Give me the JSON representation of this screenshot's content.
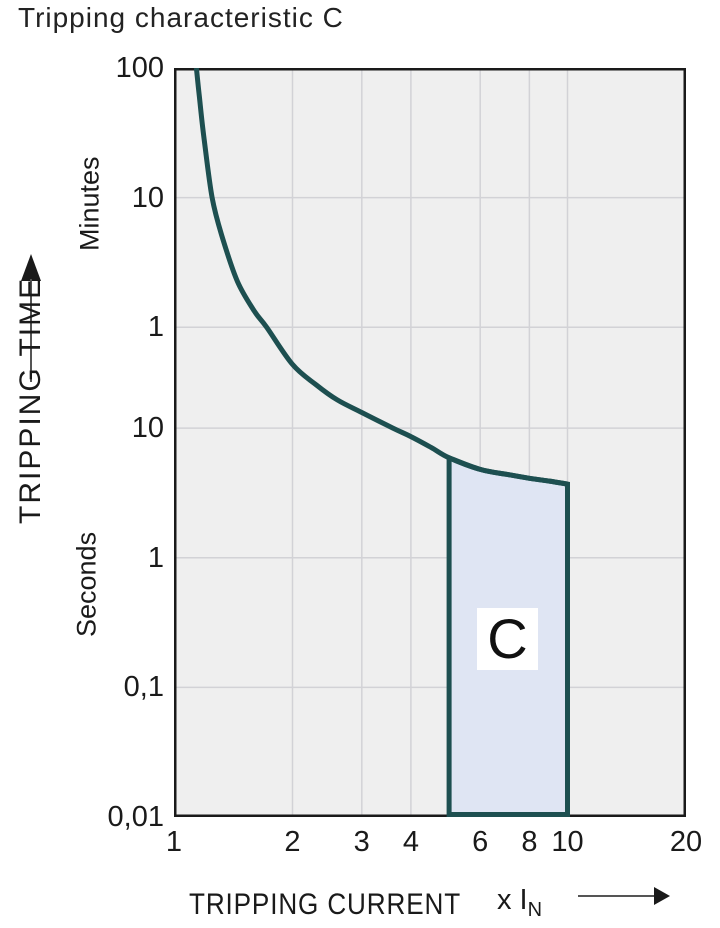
{
  "title": "Tripping characteristic C",
  "colors": {
    "curve": "#1d4f50",
    "region_fill": "#dfe5f3",
    "plot_background": "#efefef",
    "gridline": "#d2d2d6",
    "plot_border": "#1a1a1a",
    "text": "#1a1a1a"
  },
  "y_axis": {
    "title": "TRIPPING TIME",
    "unit_top": "Minutes",
    "unit_bottom": "Seconds"
  },
  "x_axis": {
    "title": "TRIPPING CURRENT",
    "multiplier": {
      "prefix": "x I",
      "sub": "N"
    }
  },
  "chart_data": {
    "type": "line",
    "title": "Tripping characteristic C",
    "x_scale": "log",
    "y_scale": "log",
    "xlabel": "TRIPPING CURRENT (x IN)",
    "ylabel": "TRIPPING TIME",
    "x_range": [
      1,
      20
    ],
    "y_range_seconds": [
      0.01,
      6000
    ],
    "x_ticks": [
      {
        "value": 1,
        "label": "1"
      },
      {
        "value": 2,
        "label": "2"
      },
      {
        "value": 3,
        "label": "3"
      },
      {
        "value": 4,
        "label": "4"
      },
      {
        "value": 6,
        "label": "6"
      },
      {
        "value": 8,
        "label": "8"
      },
      {
        "value": 10,
        "label": "10"
      },
      {
        "value": 20,
        "label": "20"
      }
    ],
    "y_ticks": [
      {
        "seconds": 6000,
        "label": "100",
        "unit": "Minutes"
      },
      {
        "seconds": 600,
        "label": "10",
        "unit": "Minutes"
      },
      {
        "seconds": 60,
        "label": "1",
        "unit": "Minutes"
      },
      {
        "seconds": 10,
        "label": "10",
        "unit": "Seconds"
      },
      {
        "seconds": 1,
        "label": "1",
        "unit": "Seconds"
      },
      {
        "seconds": 0.1,
        "label": "0,1",
        "unit": "Seconds"
      },
      {
        "seconds": 0.01,
        "label": "0,01",
        "unit": "Seconds"
      }
    ],
    "x_gridlines": [
      2,
      3,
      4,
      6,
      8,
      10
    ],
    "y_gridlines_seconds": [
      600,
      60,
      10,
      1,
      0.1
    ],
    "grid": "on",
    "curve": {
      "name": "C-characteristic tripping curve",
      "points_multiple_vs_seconds": [
        [
          1.14,
          6000
        ],
        [
          1.16,
          3600
        ],
        [
          1.19,
          1800
        ],
        [
          1.25,
          600
        ],
        [
          1.33,
          290
        ],
        [
          1.45,
          135
        ],
        [
          1.6,
          80
        ],
        [
          1.72,
          60
        ],
        [
          2.0,
          31
        ],
        [
          2.3,
          21.5
        ],
        [
          2.6,
          16.5
        ],
        [
          3.0,
          13.2
        ],
        [
          3.6,
          10
        ],
        [
          4.0,
          8.6
        ],
        [
          4.5,
          7.1
        ],
        [
          5.0,
          5.9
        ],
        [
          6.0,
          4.8
        ],
        [
          7.0,
          4.4
        ],
        [
          8.0,
          4.1
        ],
        [
          9.0,
          3.9
        ],
        [
          10.0,
          3.7
        ]
      ]
    },
    "region": {
      "label": "C",
      "x_from": 5,
      "x_to": 10,
      "bottom_seconds": 0.01,
      "top_follows_curve": true
    }
  }
}
